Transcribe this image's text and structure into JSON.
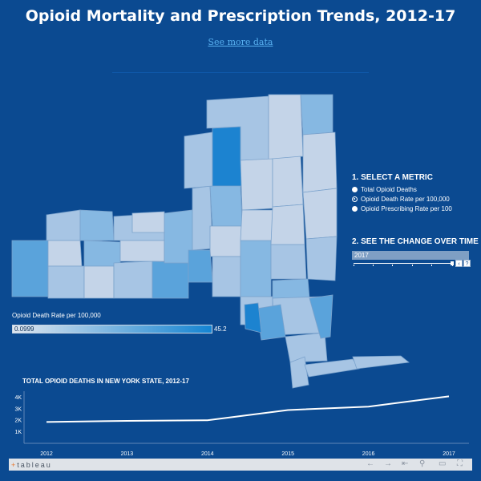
{
  "title": "Opioid Mortality and Prescription Trends, 2012-17",
  "see_more": "See more data",
  "panel": {
    "select_metric": "1. SELECT A METRIC",
    "metrics": [
      "Total Opioid Deaths",
      "Opioid Death Rate per 100,000",
      "Opioid Prescribing Rate per 100"
    ],
    "selected_metric": "Opioid Death Rate per 100,000",
    "see_change": "2. SEE THE CHANGE OVER TIME",
    "year_value": "2017",
    "prev_icon": "chevron-left-icon",
    "next_icon": "question-icon"
  },
  "legend": {
    "title": "Opioid Death Rate per 100,000",
    "min": "0.0999",
    "max": "45.2",
    "color_low": "#dfe6ef",
    "color_high": "#1484d2"
  },
  "chart_data": {
    "type": "line",
    "title": "TOTAL OPIOID DEATHS IN NEW YORK STATE, 2012-17",
    "categories": [
      "2012",
      "2013",
      "2014",
      "2015",
      "2016",
      "2017"
    ],
    "y_ticks": [
      "4K",
      "3K",
      "2K",
      "1K"
    ],
    "ylim": [
      0,
      4500
    ],
    "series": [
      {
        "values": [
          1800,
          1900,
          1950,
          2850,
          3150,
          4050
        ]
      }
    ],
    "line_color": "#ffffff",
    "grid": false
  },
  "footer": {
    "logo": "tableau",
    "icons": [
      "undo-icon",
      "redo-icon",
      "revert-icon",
      "refresh-icon",
      "share-icon",
      "download-icon",
      "fullscreen-icon"
    ]
  },
  "map": {
    "colors": {
      "pale": "#c4d4e8",
      "light": "#a7c5e4",
      "mid": "#86b8e2",
      "strong": "#5aa3db",
      "dark": "#1c83d0"
    }
  }
}
